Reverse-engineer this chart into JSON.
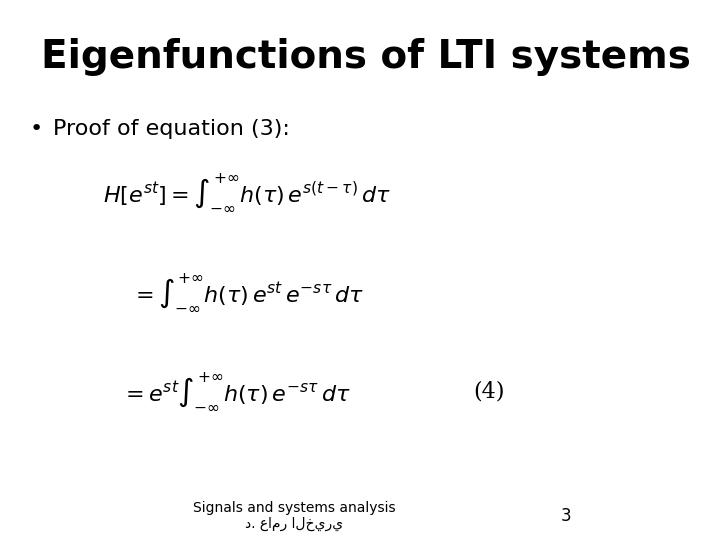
{
  "title": "Eigenfunctions of LTI systems",
  "bullet": "Proof of equation (3):",
  "eq1": "H[e^{st}] = \\int_{-\\infty}^{+\\infty} h(\\tau)\\, e^{s(t-\\tau)}\\, d\\tau",
  "eq2": "= \\int_{-\\infty}^{+\\infty} h(\\tau)\\, e^{st}\\, e^{-s\\tau}\\, d\\tau",
  "eq3": "= e^{st} \\int_{-\\infty}^{+\\infty} h(\\tau)\\, e^{-s\\tau}\\, d\\tau",
  "eq_label": "(4)",
  "footer1": "Signals and systems analysis",
  "footer2": "د. عامر الخيري",
  "page_num": "3",
  "bg_color": "#ffffff",
  "text_color": "#000000"
}
